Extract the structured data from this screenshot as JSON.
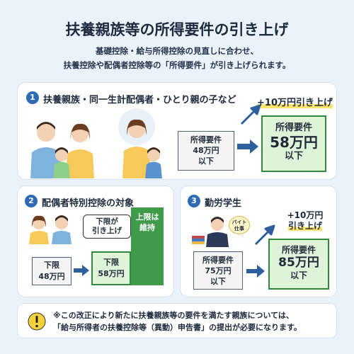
{
  "header": {
    "title": "扶養親族等の所得要件の引き上げ",
    "subtitle_line1": "基礎控除・給与所得控除の見直しに合わせ、",
    "subtitle_line2": "扶養控除や配偶者控除等の「所得要件」が引き上げられます。"
  },
  "section1": {
    "number": "1",
    "title": "扶養親族・同一生計配偶者・ひとり親の子など",
    "raise_label": "+10万円引き上げ",
    "before_label": "所得要件",
    "before_value": "48万円",
    "before_suffix": "以下",
    "after_label": "所得要件",
    "after_value": "58万円",
    "after_suffix": "以下"
  },
  "section2": {
    "number": "2",
    "title": "配偶者特別控除の対象",
    "callout_line1": "下限が",
    "callout_line2": "引き上げ",
    "lower_before_label": "下限",
    "lower_before_value": "48万円",
    "lower_after_label": "下限",
    "lower_after_value": "58万円",
    "upper_line1": "上限は",
    "upper_line2": "維持"
  },
  "section3": {
    "number": "3",
    "title": "勤労学生",
    "tag_line1": "バイト",
    "tag_line2": "仕事",
    "raise_line1": "+10万円",
    "raise_line2": "引き上げ",
    "before_label": "所得要件",
    "before_value": "75万円",
    "before_suffix": "以下",
    "after_label": "所得要件",
    "after_value": "85万円",
    "after_suffix": "以下"
  },
  "notice": {
    "icon": "exclamation-icon",
    "line1": "※この改正により新たに扶養親族等の要件を満たす親族については、",
    "line2": "「給与所得者の扶養控除等（異動）申告書」の提出が必要になります。"
  },
  "colors": {
    "background": "#eaf3fb",
    "accent_blue": "#2d6cb4",
    "accent_green": "#3f9a4a",
    "highlight_yellow": "#ffe26a"
  }
}
